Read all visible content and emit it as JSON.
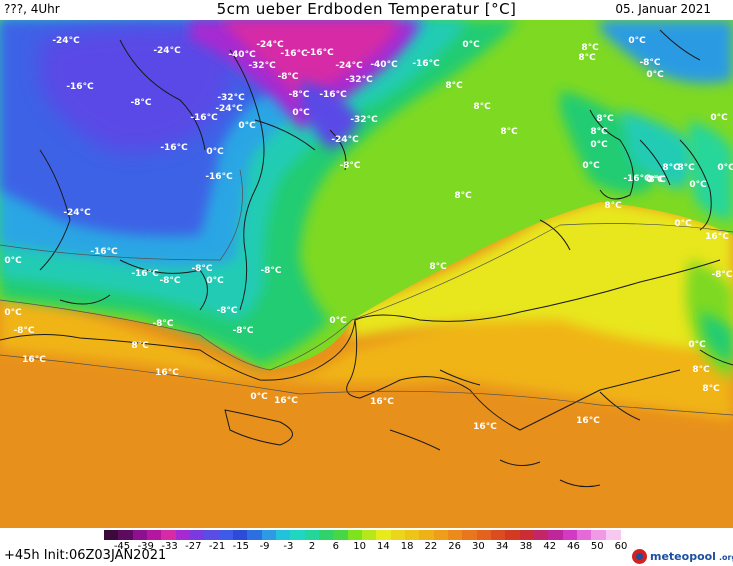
{
  "header": {
    "left": "???, 4Uhr",
    "title": "5cm ueber Erdboden Temperatur [°C]",
    "date": "05. Januar 2021"
  },
  "scale": {
    "colors": [
      "#3a0a3a",
      "#5e0a5e",
      "#8e1090",
      "#b4179f",
      "#d62aa6",
      "#a52ad2",
      "#7a3ae0",
      "#5a4de6",
      "#3e5ae8",
      "#2c4cd8",
      "#2b6fe0",
      "#2c9be3",
      "#23c2dc",
      "#1fd6c2",
      "#25d69a",
      "#2ed46a",
      "#47d645",
      "#7ee21c",
      "#b4e81a",
      "#e8ea1c",
      "#ecd61c",
      "#eec419",
      "#eeb216",
      "#ee9e18",
      "#ec8a1a",
      "#e8761c",
      "#e4621e",
      "#dc4c20",
      "#d43a22",
      "#cc2c34",
      "#c22666",
      "#c0269c",
      "#d23ac4",
      "#e46ad8",
      "#f09ae6",
      "#f6c8f2"
    ],
    "ticks": [
      "-45",
      "-39",
      "-33",
      "-27",
      "-21",
      "-15",
      "-9",
      "-3",
      "2",
      "6",
      "10",
      "14",
      "18",
      "22",
      "26",
      "30",
      "34",
      "38",
      "42",
      "46",
      "50",
      "60"
    ]
  },
  "footer": {
    "run": "+45h  Init:06Z03JAN2021",
    "brand": "meteopool",
    "brand_tld": ".org"
  },
  "map_labels": [
    {
      "text": "-24°C"
    },
    {
      "text": "-24°C"
    },
    {
      "text": "-24°C"
    },
    {
      "text": "-40°C"
    },
    {
      "text": "-16°C"
    },
    {
      "text": "-32°C"
    },
    {
      "text": "-16°C"
    },
    {
      "text": "-24°C"
    },
    {
      "text": "-40°C"
    },
    {
      "text": "-16°C"
    },
    {
      "text": "-32°C"
    },
    {
      "text": "-24°C"
    },
    {
      "text": "-8°C"
    },
    {
      "text": "-16°C"
    },
    {
      "text": "-8°C"
    },
    {
      "text": "0°C"
    },
    {
      "text": "-32°C"
    },
    {
      "text": "-8°C"
    },
    {
      "text": "-16°C"
    },
    {
      "text": "-16°C"
    },
    {
      "text": "-32°C"
    },
    {
      "text": "-24°C"
    },
    {
      "text": "-8°C"
    },
    {
      "text": "0°C"
    },
    {
      "text": "-16°C"
    },
    {
      "text": "0°C"
    },
    {
      "text": "-16°C"
    },
    {
      "text": "-24°C"
    },
    {
      "text": "-16°C"
    },
    {
      "text": "-16°C"
    },
    {
      "text": "-8°C"
    },
    {
      "text": "-8°C"
    },
    {
      "text": "-8°C"
    },
    {
      "text": "-8°C"
    },
    {
      "text": "0°C"
    },
    {
      "text": "-8°C"
    },
    {
      "text": "-8°C"
    },
    {
      "text": "0°C"
    },
    {
      "text": "0°C"
    },
    {
      "text": "-8°C"
    },
    {
      "text": "0°C"
    },
    {
      "text": "0°C"
    },
    {
      "text": "8°C"
    },
    {
      "text": "8°C"
    },
    {
      "text": "16°C"
    },
    {
      "text": "16°C"
    },
    {
      "text": "8°C"
    },
    {
      "text": "16°C"
    },
    {
      "text": "16°C"
    },
    {
      "text": "16°C"
    },
    {
      "text": "16°C"
    },
    {
      "text": "0°C"
    },
    {
      "text": "8°C"
    },
    {
      "text": "8°C"
    },
    {
      "text": "0°C"
    },
    {
      "text": "-8°C"
    },
    {
      "text": "8°C"
    },
    {
      "text": "8°C"
    },
    {
      "text": "8°C"
    },
    {
      "text": "8°C"
    },
    {
      "text": "8°C"
    },
    {
      "text": "0°C"
    },
    {
      "text": "0°C"
    },
    {
      "text": "0°C"
    },
    {
      "text": "0°C"
    },
    {
      "text": "8°C"
    },
    {
      "text": "8°C"
    },
    {
      "text": "0°C"
    },
    {
      "text": "8°C"
    },
    {
      "text": "0°C"
    },
    {
      "text": "8°C"
    },
    {
      "text": "0°C"
    },
    {
      "text": "-8°C"
    },
    {
      "text": "-16°C"
    },
    {
      "text": "0°C"
    },
    {
      "text": "8°C"
    },
    {
      "text": "0°C"
    },
    {
      "text": "8°C"
    },
    {
      "text": "16°C"
    }
  ]
}
